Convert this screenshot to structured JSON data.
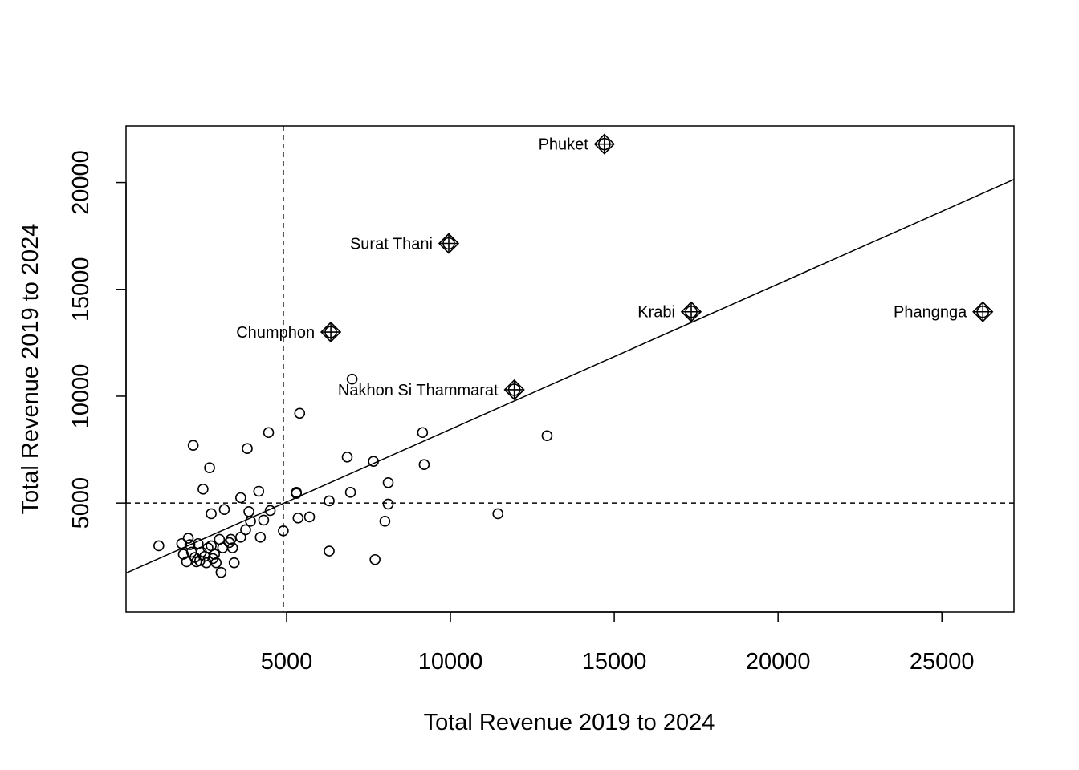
{
  "chart_data": {
    "type": "scatter",
    "title": "",
    "xlabel": "Total Revenue 2019 to 2024",
    "ylabel": "Total Revenue 2019 to 2024",
    "xlim": [
      100,
      27200
    ],
    "ylim": [
      -100,
      22650
    ],
    "xticks": [
      5000,
      10000,
      15000,
      20000,
      25000
    ],
    "yticks": [
      5000,
      10000,
      15000,
      20000
    ],
    "grid": false,
    "reference_lines": {
      "vertical_x": 4900,
      "horizontal_y": 5000,
      "style": "dashed"
    },
    "regression_line": {
      "slope": 0.68,
      "intercept": 1650
    },
    "highlighted": [
      {
        "label": "Phuket",
        "x": 14700,
        "y": 21800
      },
      {
        "label": "Surat Thani",
        "x": 9950,
        "y": 17150
      },
      {
        "label": "Krabi",
        "x": 17350,
        "y": 13950
      },
      {
        "label": "Phangnga",
        "x": 26250,
        "y": 13950
      },
      {
        "label": "Chumphon",
        "x": 6350,
        "y": 13000
      },
      {
        "label": "Nakhon Si Thammarat",
        "x": 11950,
        "y": 10300
      }
    ],
    "points": [
      {
        "x": 1100,
        "y": 3000
      },
      {
        "x": 1800,
        "y": 3100
      },
      {
        "x": 1850,
        "y": 2600
      },
      {
        "x": 1950,
        "y": 2250
      },
      {
        "x": 2000,
        "y": 3350
      },
      {
        "x": 2050,
        "y": 3050
      },
      {
        "x": 2100,
        "y": 2700
      },
      {
        "x": 2150,
        "y": 7700
      },
      {
        "x": 2200,
        "y": 2450
      },
      {
        "x": 2250,
        "y": 2250
      },
      {
        "x": 2300,
        "y": 3100
      },
      {
        "x": 2350,
        "y": 2300
      },
      {
        "x": 2400,
        "y": 2700
      },
      {
        "x": 2450,
        "y": 5650
      },
      {
        "x": 2500,
        "y": 2500
      },
      {
        "x": 2550,
        "y": 2200
      },
      {
        "x": 2600,
        "y": 2900
      },
      {
        "x": 2650,
        "y": 6650
      },
      {
        "x": 2700,
        "y": 4500
      },
      {
        "x": 2700,
        "y": 3000
      },
      {
        "x": 2750,
        "y": 2400
      },
      {
        "x": 2800,
        "y": 2600
      },
      {
        "x": 2850,
        "y": 2200
      },
      {
        "x": 2950,
        "y": 3300
      },
      {
        "x": 3000,
        "y": 1750
      },
      {
        "x": 3050,
        "y": 2900
      },
      {
        "x": 3100,
        "y": 4700
      },
      {
        "x": 3250,
        "y": 3150
      },
      {
        "x": 3300,
        "y": 3300
      },
      {
        "x": 3350,
        "y": 2900
      },
      {
        "x": 3400,
        "y": 2200
      },
      {
        "x": 3600,
        "y": 5250
      },
      {
        "x": 3600,
        "y": 3400
      },
      {
        "x": 3750,
        "y": 3750
      },
      {
        "x": 3800,
        "y": 7550
      },
      {
        "x": 3850,
        "y": 4600
      },
      {
        "x": 3900,
        "y": 4150
      },
      {
        "x": 4150,
        "y": 5550
      },
      {
        "x": 4200,
        "y": 3400
      },
      {
        "x": 4300,
        "y": 4200
      },
      {
        "x": 4450,
        "y": 8300
      },
      {
        "x": 4500,
        "y": 4650
      },
      {
        "x": 4900,
        "y": 3700
      },
      {
        "x": 5300,
        "y": 5450
      },
      {
        "x": 5300,
        "y": 5500
      },
      {
        "x": 5350,
        "y": 4300
      },
      {
        "x": 5400,
        "y": 9200
      },
      {
        "x": 5700,
        "y": 4350
      },
      {
        "x": 6300,
        "y": 5100
      },
      {
        "x": 6300,
        "y": 2750
      },
      {
        "x": 6850,
        "y": 7150
      },
      {
        "x": 6950,
        "y": 5500
      },
      {
        "x": 7000,
        "y": 10800
      },
      {
        "x": 7650,
        "y": 6950
      },
      {
        "x": 7700,
        "y": 2350
      },
      {
        "x": 8000,
        "y": 4150
      },
      {
        "x": 8100,
        "y": 4950
      },
      {
        "x": 8100,
        "y": 5950
      },
      {
        "x": 9150,
        "y": 8300
      },
      {
        "x": 9200,
        "y": 6800
      },
      {
        "x": 11450,
        "y": 4500
      },
      {
        "x": 12950,
        "y": 8150
      }
    ]
  }
}
